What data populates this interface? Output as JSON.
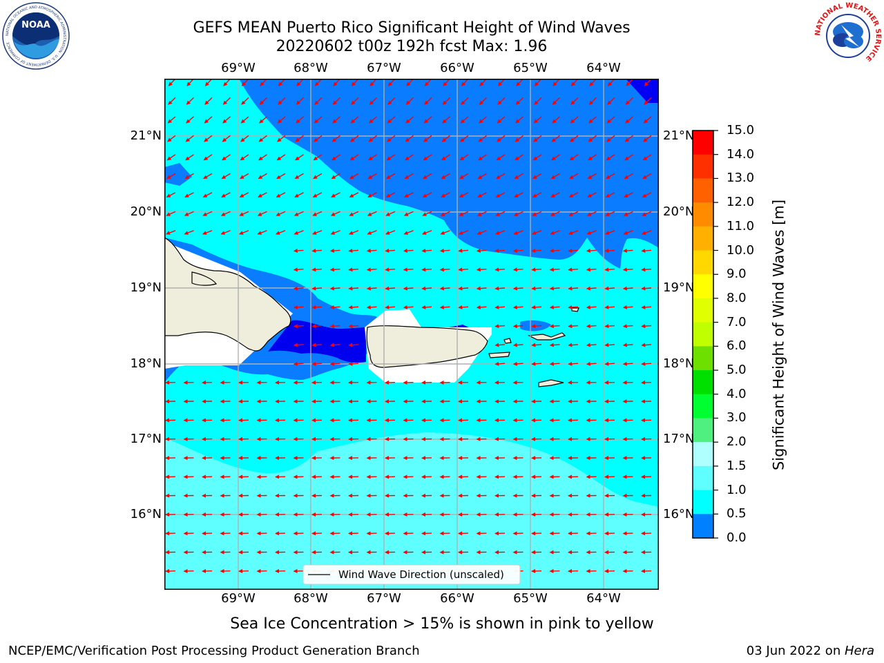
{
  "header": {
    "title_line1": "GEFS MEAN Puerto Rico Significant Height of Wind Waves",
    "title_line2": "20220602 t00z 192h fcst   Max: 1.96"
  },
  "logos": {
    "noaa": {
      "text": "NOAA",
      "ring_text": "NATIONAL OCEANIC AND ATMOSPHERIC ADMINISTRATION · U.S. DEPARTMENT OF COMMERCE"
    },
    "nws": {
      "ring_text": "NATIONAL WEATHER SERVICE"
    }
  },
  "map": {
    "lon_ticks": [
      "69°W",
      "68°W",
      "67°W",
      "66°W",
      "65°W",
      "64°W"
    ],
    "lat_ticks": [
      "21°N",
      "20°N",
      "19°N",
      "18°N",
      "17°N",
      "16°N"
    ],
    "legend_label": "Wind Wave Direction (unscaled)",
    "wind_direction": "from east-northeast, arrows pointing west-southwest",
    "land_areas": [
      "Hispaniola (east)",
      "Puerto Rico",
      "Vieques",
      "Culebra",
      "U.S. Virgin Islands",
      "St. Croix"
    ]
  },
  "colorbar": {
    "title": "Significant Height of Wind Waves [m]",
    "labels": [
      "15.0",
      "14.0",
      "13.0",
      "12.0",
      "11.0",
      "10.0",
      "9.0",
      "8.0",
      "7.0",
      "6.0",
      "5.0",
      "4.0",
      "3.0",
      "2.0",
      "1.5",
      "1.0",
      "0.5",
      "0.0"
    ],
    "colors_top_to_bottom": [
      "#ff0000",
      "#ff3000",
      "#ff6000",
      "#ff8c00",
      "#ffb000",
      "#ffd800",
      "#ffff00",
      "#e0ff00",
      "#c0ff00",
      "#6ee000",
      "#00e000",
      "#00ff30",
      "#50f080",
      "#b0ffff",
      "#60ffff",
      "#00ffff",
      "#0080ff",
      "#0000ff"
    ]
  },
  "chart_data": {
    "type": "heatmap",
    "variable": "Significant Height of Wind Waves",
    "units": "m",
    "max": 1.96,
    "run": "20220602 t00z",
    "forecast_hour": 192,
    "lon_range": [
      -69.5,
      -62.75
    ],
    "lat_range": [
      15.0,
      21.75
    ]
  },
  "footer": {
    "note": "Sea Ice Concentration > 15% is shown in pink to yellow",
    "credit": "NCEP/EMC/Verification Post Processing Product Generation Branch",
    "date": "03 Jun 2022 on ",
    "host": "Hera"
  }
}
